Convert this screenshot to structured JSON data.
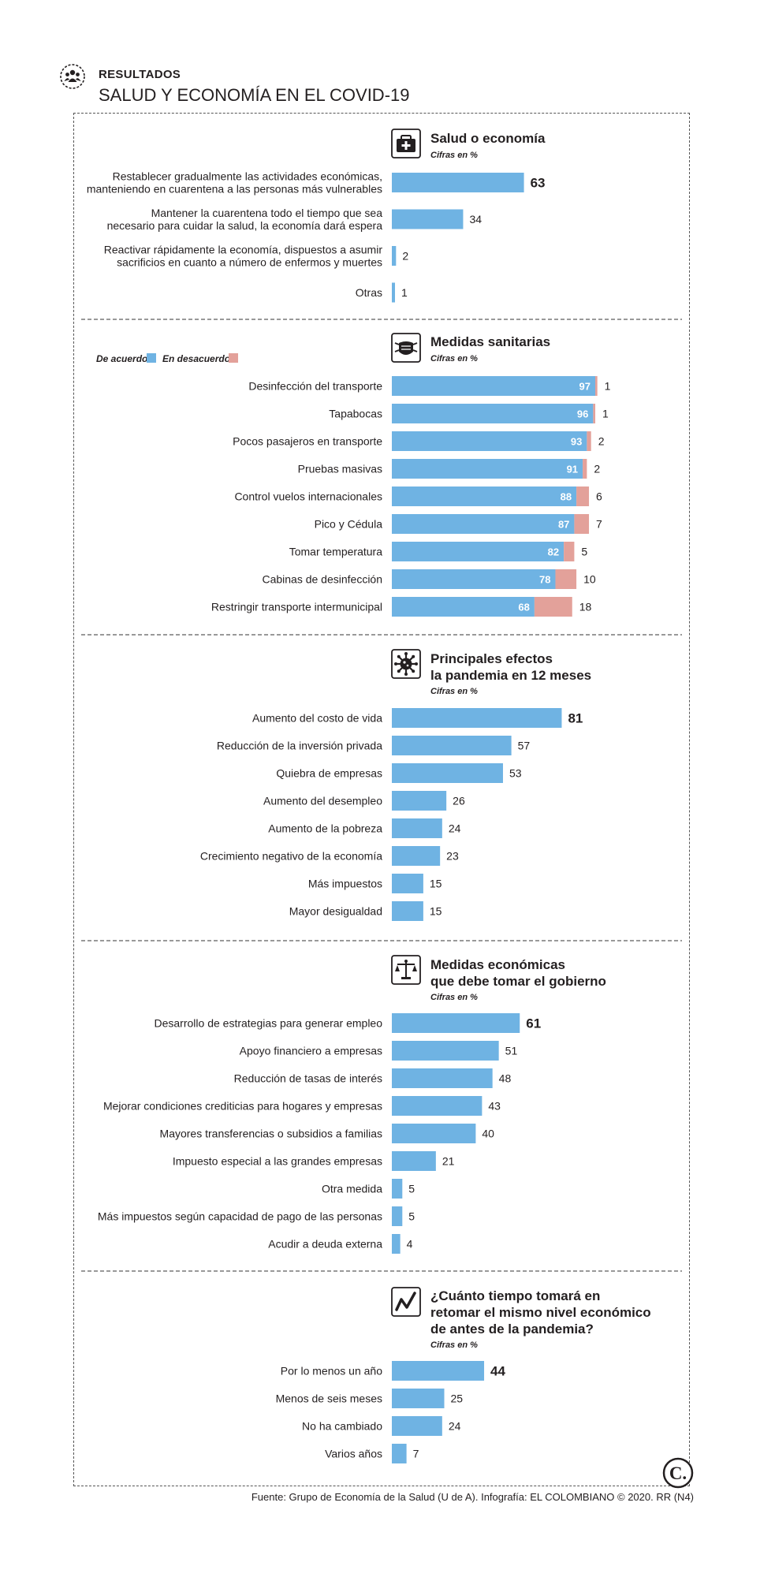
{
  "header": {
    "kicker": "RESULTADOS",
    "title": "SALUD Y ECONOMÍA EN EL COVID-19"
  },
  "source": "Fuente: Grupo de Economía de la Salud (U de A). Infografía: EL COLOMBIANO © 2020. RR (N4)",
  "logo": "C.",
  "icons": [
    "people-icon",
    "medical-kit-icon",
    "mask-icon",
    "virus-icon",
    "scale-icon",
    "trend-icon",
    "logo-icon"
  ],
  "colors": {
    "bar": "#6fb3e3",
    "bar_disagree": "#e3a19a",
    "text": "#231f20"
  },
  "chart_data": [
    {
      "type": "bar",
      "orientation": "horizontal",
      "title": [
        "Salud o economía"
      ],
      "subtitle": "Cifras en %",
      "categories": [
        [
          "Restablecer gradualmente las actividades económicas,",
          "manteniendo en cuarentena a las personas más vulnerables"
        ],
        [
          "Mantener la cuarentena todo el tiempo que sea",
          "necesario para cuidar la salud, la economía dará espera"
        ],
        [
          "Reactivar rápidamente la economía, dispuestos a asumir",
          "sacrificios en cuanto a número de enfermos y muertes"
        ],
        [
          "Otras"
        ]
      ],
      "values": [
        63,
        34,
        2,
        1
      ],
      "value_labels": [
        "63",
        "34",
        "2",
        "1"
      ],
      "xlim": [
        0,
        100
      ]
    },
    {
      "type": "bar",
      "orientation": "horizontal",
      "stacked": true,
      "title": [
        "Medidas sanitarias"
      ],
      "subtitle": "Cifras en %",
      "legend": [
        "De acuerdo",
        "En desacuerdo"
      ],
      "categories": [
        "Desinfección del transporte",
        "Tapabocas",
        "Pocos pasajeros en transporte",
        "Pruebas masivas",
        "Control vuelos internacionales",
        "Pico y Cédula",
        "Tomar temperatura",
        "Cabinas de desinfección",
        "Restringir transporte intermunicipal"
      ],
      "series": [
        {
          "name": "De acuerdo",
          "values": [
            97,
            96,
            93,
            91,
            88,
            87,
            82,
            78,
            68
          ],
          "value_labels": [
            "97",
            "96",
            "93",
            "91",
            "88",
            "87",
            "82",
            "78",
            "68"
          ]
        },
        {
          "name": "En desacuerdo",
          "values": [
            1,
            1,
            2,
            2,
            6,
            7,
            5,
            10,
            18
          ],
          "value_labels": [
            "1",
            "1",
            "2",
            "2",
            "6",
            "7",
            "5",
            "10",
            "18"
          ]
        }
      ],
      "xlim": [
        0,
        100
      ]
    },
    {
      "type": "bar",
      "orientation": "horizontal",
      "title": [
        "Principales efectos",
        "la pandemia en 12 meses"
      ],
      "subtitle": "Cifras en %",
      "categories": [
        "Aumento del costo de vida",
        "Reducción de la inversión privada",
        "Quiebra de empresas",
        "Aumento del desempleo",
        "Aumento de la pobreza",
        "Crecimiento negativo de la economía",
        "Más impuestos",
        "Mayor desigualdad"
      ],
      "values": [
        81,
        57,
        53,
        26,
        24,
        23,
        15,
        15
      ],
      "value_labels": [
        "81",
        "57",
        "53",
        "26",
        "24",
        "23",
        "15",
        "15"
      ],
      "xlim": [
        0,
        100
      ]
    },
    {
      "type": "bar",
      "orientation": "horizontal",
      "title": [
        "Medidas económicas",
        "que debe tomar el gobierno"
      ],
      "subtitle": "Cifras en %",
      "categories": [
        "Desarrollo de estrategias para generar empleo",
        "Apoyo financiero a empresas",
        "Reducción de tasas de interés",
        "Mejorar condiciones crediticias para hogares y empresas",
        "Mayores transferencias o subsidios a familias",
        "Impuesto especial a las grandes empresas",
        "Otra medida",
        "Más impuestos según capacidad de pago de las personas",
        "Acudir a deuda externa"
      ],
      "values": [
        61,
        51,
        48,
        43,
        40,
        21,
        5,
        5,
        4
      ],
      "value_labels": [
        "61",
        "51",
        "48",
        "43",
        "40",
        "21",
        "5",
        "5",
        "4"
      ],
      "xlim": [
        0,
        100
      ]
    },
    {
      "type": "bar",
      "orientation": "horizontal",
      "title": [
        "¿Cuánto tiempo tomará en",
        "retomar el mismo nivel económico",
        "de antes de la pandemia?"
      ],
      "subtitle": "Cifras en %",
      "categories": [
        "Por lo menos un año",
        "Menos de seis meses",
        "No ha cambiado",
        "Varios años"
      ],
      "values": [
        44,
        25,
        24,
        7
      ],
      "value_labels": [
        "44",
        "25",
        "24",
        "7"
      ],
      "xlim": [
        0,
        100
      ]
    }
  ]
}
